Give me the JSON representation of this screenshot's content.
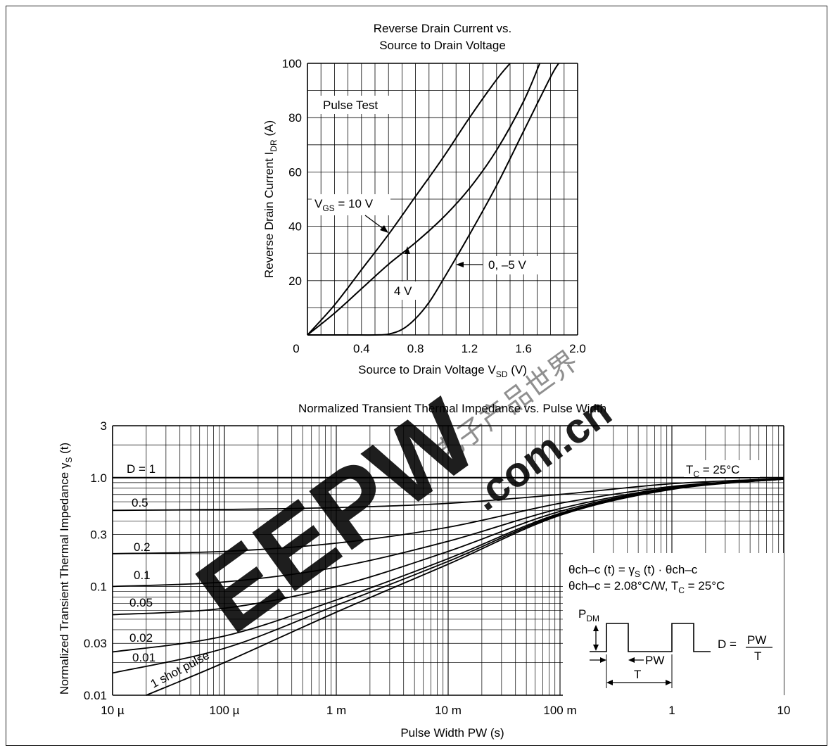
{
  "watermark": {
    "brand": "EEPW",
    "domain": ".com.cn",
    "chinese": "电子产品世界",
    "color": "#e3262f"
  },
  "chart_data": [
    {
      "type": "line",
      "title": "Reverse Drain Current vs.",
      "subtitle": "Source to Drain Voltage",
      "xlabel": "Source to Drain Voltage",
      "xlabel_symbol": "V",
      "xlabel_sub": "SD",
      "xlabel_unit": "(V)",
      "ylabel": "Reverse Drain Current",
      "ylabel_symbol": "I",
      "ylabel_sub": "DR",
      "ylabel_unit": "(A)",
      "xlim": [
        0,
        2.0
      ],
      "ylim": [
        0,
        100
      ],
      "x_ticks": [
        "0",
        "0.4",
        "0.8",
        "1.2",
        "1.6",
        "2.0"
      ],
      "y_ticks": [
        "20",
        "40",
        "60",
        "80",
        "100"
      ],
      "grid": true,
      "annotations": {
        "pulse_test": "Pulse Test",
        "vgs_prefix": "V",
        "vgs_sub": "GS",
        "vgs_value": " = 10 V",
        "label_4v": "4 V",
        "label_0v": "0, –5 V"
      },
      "series": [
        {
          "name": "V_GS = 10 V",
          "x": [
            0,
            0.2,
            0.4,
            0.6,
            0.8,
            1.0,
            1.2,
            1.4,
            1.5
          ],
          "y": [
            0,
            11,
            24,
            37,
            51,
            65,
            80,
            94,
            100
          ]
        },
        {
          "name": "4 V",
          "x": [
            0,
            0.2,
            0.4,
            0.6,
            0.8,
            1.0,
            1.2,
            1.4,
            1.6,
            1.72
          ],
          "y": [
            0,
            8,
            17,
            26,
            34,
            43,
            54,
            68,
            86,
            100
          ]
        },
        {
          "name": "0, –5 V",
          "x": [
            0,
            0.3,
            0.5,
            0.6,
            0.7,
            0.8,
            0.9,
            1.0,
            1.2,
            1.4,
            1.6,
            1.8,
            1.86
          ],
          "y": [
            0,
            0,
            0,
            0.3,
            2,
            6,
            12,
            20,
            37,
            55,
            75,
            95,
            100
          ]
        }
      ]
    },
    {
      "type": "line",
      "title": "Normalized Transient Thermal Impedance vs. Pulse Width",
      "xlabel": "Pulse Width  PW  (s)",
      "ylabel": "Normalized Transient Thermal Impedance",
      "ylabel_symbol": "γ",
      "ylabel_sub": "S",
      "ylabel_unit": "(t)",
      "x_scale": "log",
      "y_scale": "log",
      "xlim": [
        1e-05,
        10
      ],
      "ylim": [
        0.01,
        3
      ],
      "x_ticks": [
        "10 µ",
        "100 µ",
        "1 m",
        "10 m",
        "100 m",
        "1",
        "10"
      ],
      "y_ticks": [
        "0.01",
        "0.03",
        "0.1",
        "0.3",
        "1.0",
        "3"
      ],
      "grid": true,
      "annotations": {
        "tc_prefix": "T",
        "tc_sub": "C",
        "tc_value": " = 25°C",
        "formula1_a": "θch–c (t) = γ",
        "formula1_sub": "S",
        "formula1_b": " (t) · θch–c",
        "formula2_a": "θch–c = 2.08°C/W, T",
        "formula2_sub": "C",
        "formula2_b": " = 25°C",
        "pdm_prefix": "P",
        "pdm_sub": "DM",
        "duty_label": "D =",
        "duty_num": "PW",
        "duty_den": "T",
        "pw_label": "PW",
        "t_label": "T"
      },
      "series": [
        {
          "name": "D = 1",
          "x": [
            1e-05,
            10
          ],
          "y": [
            1.0,
            1.0
          ]
        },
        {
          "name": "0.5",
          "x": [
            1e-05,
            0.0001,
            0.001,
            0.01,
            0.1,
            1,
            10
          ],
          "y": [
            0.5,
            0.51,
            0.53,
            0.58,
            0.7,
            0.88,
            0.98
          ]
        },
        {
          "name": "0.2",
          "x": [
            1e-05,
            0.0001,
            0.001,
            0.01,
            0.1,
            1,
            10
          ],
          "y": [
            0.2,
            0.21,
            0.25,
            0.35,
            0.58,
            0.83,
            0.98
          ]
        },
        {
          "name": "0.1",
          "x": [
            1e-05,
            0.0001,
            0.001,
            0.01,
            0.1,
            1,
            10
          ],
          "y": [
            0.1,
            0.11,
            0.15,
            0.26,
            0.52,
            0.81,
            0.97
          ]
        },
        {
          "name": "0.05",
          "x": [
            1e-05,
            0.0001,
            0.001,
            0.01,
            0.1,
            1,
            10
          ],
          "y": [
            0.055,
            0.063,
            0.1,
            0.21,
            0.49,
            0.8,
            0.97
          ]
        },
        {
          "name": "0.02",
          "x": [
            1e-05,
            0.0001,
            0.001,
            0.01,
            0.1,
            1,
            10
          ],
          "y": [
            0.025,
            0.035,
            0.075,
            0.18,
            0.47,
            0.79,
            0.97
          ]
        },
        {
          "name": "0.01",
          "x": [
            1e-05,
            0.0001,
            0.001,
            0.01,
            0.1,
            1,
            10
          ],
          "y": [
            0.016,
            0.027,
            0.067,
            0.17,
            0.46,
            0.79,
            0.97
          ]
        },
        {
          "name": "1 shot pulse",
          "x": [
            2e-05,
            0.0001,
            0.001,
            0.01,
            0.1,
            1,
            10
          ],
          "y": [
            0.01,
            0.02,
            0.058,
            0.16,
            0.45,
            0.78,
            0.97
          ]
        }
      ]
    }
  ]
}
